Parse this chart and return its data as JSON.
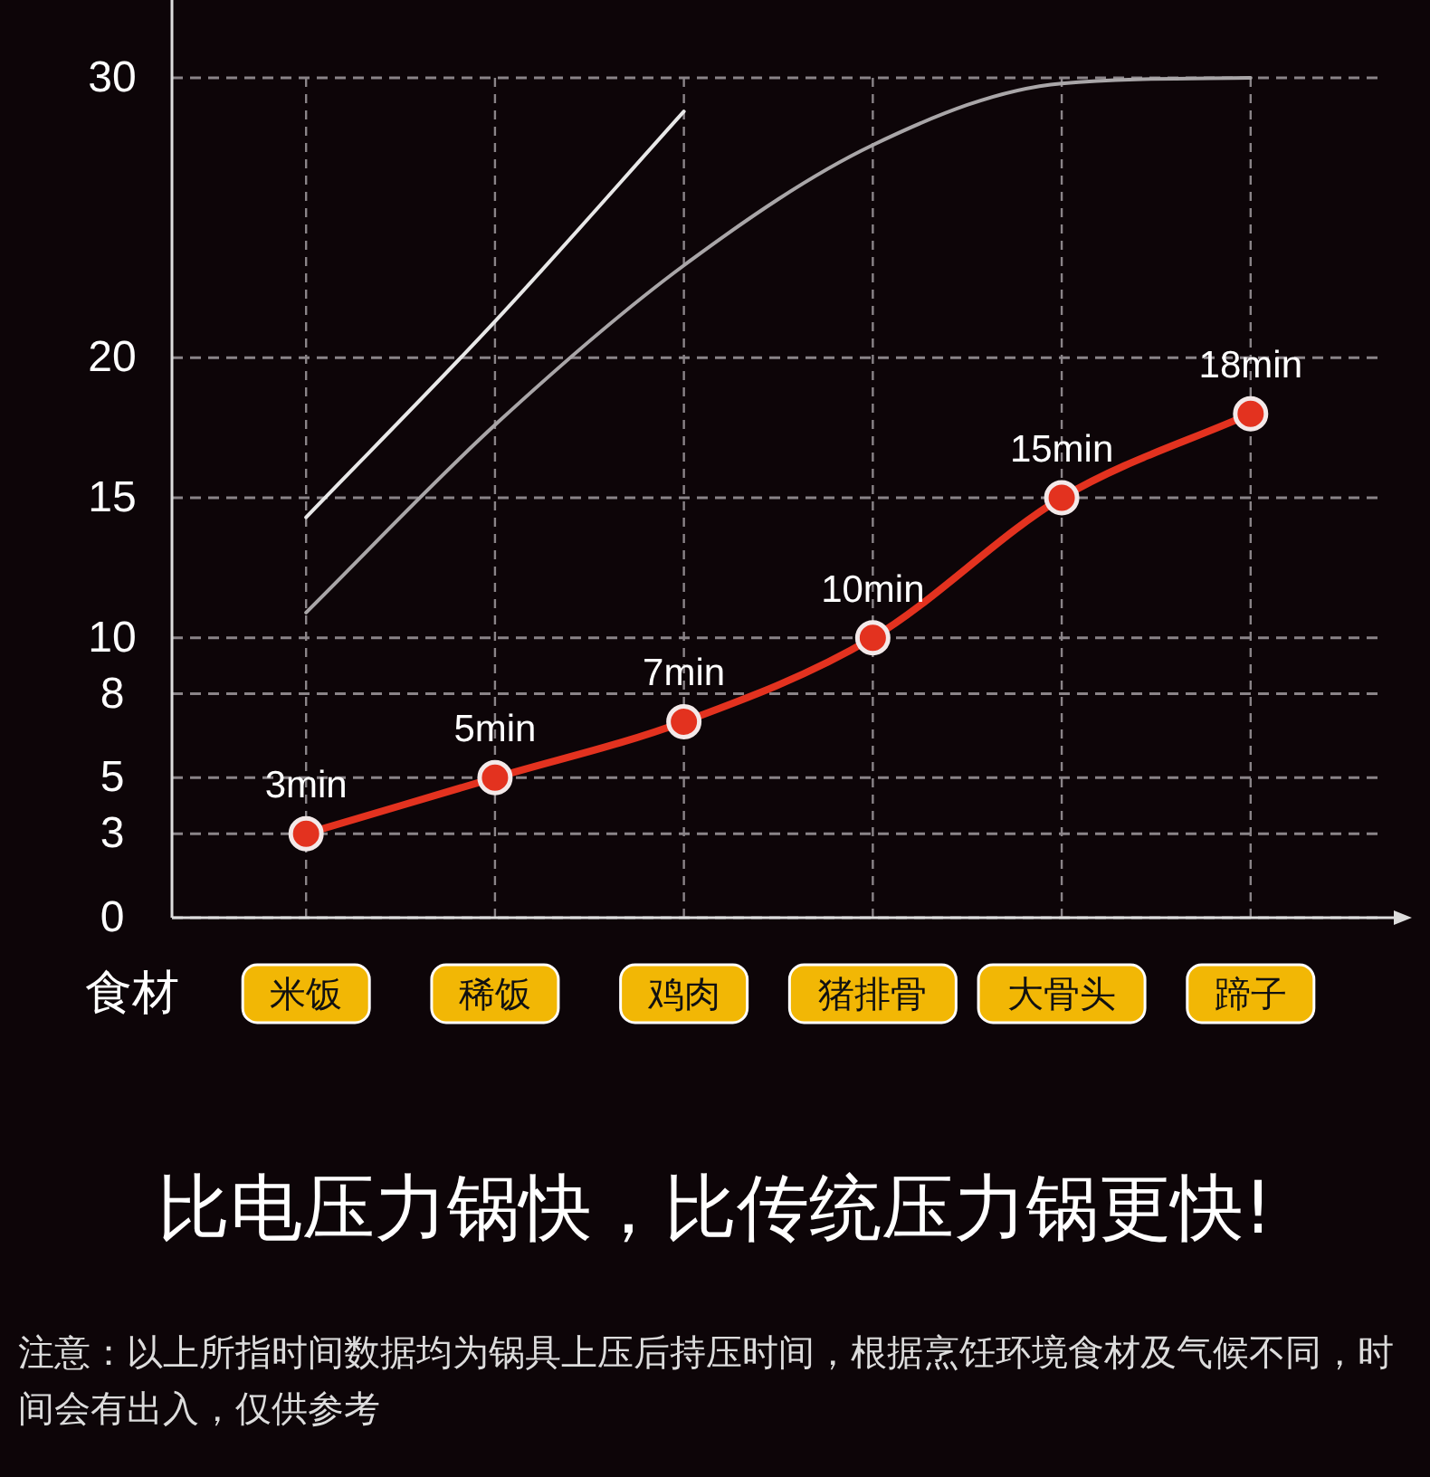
{
  "chart_data": {
    "type": "line",
    "title": "比电压力锅快，比传统压力锅更快!",
    "xlabel": "食材",
    "categories": [
      "米饭",
      "稀饭",
      "鸡肉",
      "猪排骨",
      "大骨头",
      "蹄子"
    ],
    "series": [
      {
        "color": "#e8e8e8",
        "values": [
          14.3,
          21.3,
          28.8,
          null,
          null,
          null
        ],
        "marker": "none"
      },
      {
        "color": "#a9a6a8",
        "values": [
          10.9,
          17.6,
          23.3,
          27.6,
          29.8,
          30
        ],
        "marker": "none"
      },
      {
        "color": "#e3321f",
        "values": [
          3,
          5,
          7,
          10,
          15,
          18
        ],
        "marker": "circle",
        "value_labels": [
          "3min",
          "5min",
          "7min",
          "10min",
          "15min",
          "18min"
        ]
      }
    ],
    "ylim": [
      0,
      30
    ],
    "yticks": [
      0,
      3,
      5,
      8,
      10,
      15,
      20,
      30
    ],
    "grid": true,
    "annotations": [
      "注意：以上所指时间数据均为锅具上压后持压时间，根据烹饪环境食材及气候不同，时间会有出入，仅供参考"
    ]
  }
}
